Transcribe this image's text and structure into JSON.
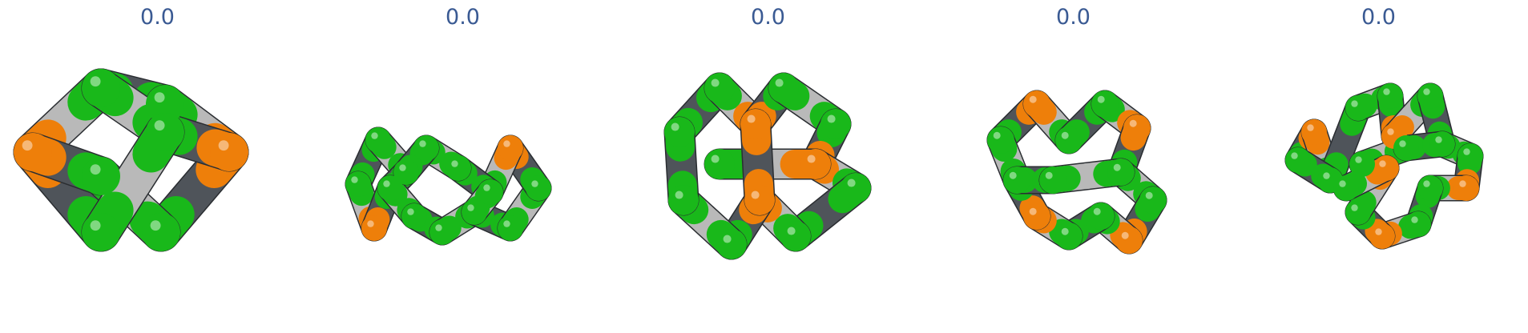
{
  "colors": {
    "green": "#19b81a",
    "orange": "#ee7f0a",
    "dark_gray": "#4f545a",
    "light_gray": "#b9b9b9",
    "label_text": "#3a5a93"
  },
  "panels": [
    {
      "label": "0.0"
    },
    {
      "label": "0.0"
    },
    {
      "label": "0.0"
    },
    {
      "label": "0.0"
    },
    {
      "label": "0.0"
    }
  ]
}
